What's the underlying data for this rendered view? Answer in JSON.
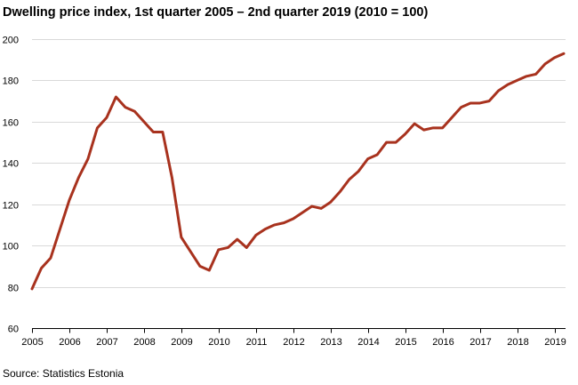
{
  "title": "Dwelling price index, 1st quarter 2005 – 2nd quarter 2019 (2010 = 100)",
  "source": "Source: Statistics Estonia",
  "chart_data": {
    "type": "line",
    "title": "Dwelling price index, 1st quarter 2005 – 2nd quarter 2019 (2010 = 100)",
    "xlabel": "",
    "ylabel": "",
    "ylim": [
      60,
      200
    ],
    "yticks": [
      60,
      80,
      100,
      120,
      140,
      160,
      180,
      200
    ],
    "xticks": [
      "2005",
      "2006",
      "2007",
      "2008",
      "2009",
      "2010",
      "2011",
      "2012",
      "2013",
      "2014",
      "2015",
      "2016",
      "2017",
      "2018",
      "2019"
    ],
    "grid": true,
    "legend": "none",
    "color": "#a8321e",
    "x": [
      "2005 Q1",
      "2005 Q2",
      "2005 Q3",
      "2005 Q4",
      "2006 Q1",
      "2006 Q2",
      "2006 Q3",
      "2006 Q4",
      "2007 Q1",
      "2007 Q2",
      "2007 Q3",
      "2007 Q4",
      "2008 Q1",
      "2008 Q2",
      "2008 Q3",
      "2008 Q4",
      "2009 Q1",
      "2009 Q2",
      "2009 Q3",
      "2009 Q4",
      "2010 Q1",
      "2010 Q2",
      "2010 Q3",
      "2010 Q4",
      "2011 Q1",
      "2011 Q2",
      "2011 Q3",
      "2011 Q4",
      "2012 Q1",
      "2012 Q2",
      "2012 Q3",
      "2012 Q4",
      "2013 Q1",
      "2013 Q2",
      "2013 Q3",
      "2013 Q4",
      "2014 Q1",
      "2014 Q2",
      "2014 Q3",
      "2014 Q4",
      "2015 Q1",
      "2015 Q2",
      "2015 Q3",
      "2015 Q4",
      "2016 Q1",
      "2016 Q2",
      "2016 Q3",
      "2016 Q4",
      "2017 Q1",
      "2017 Q2",
      "2017 Q3",
      "2017 Q4",
      "2018 Q1",
      "2018 Q2",
      "2018 Q3",
      "2018 Q4",
      "2019 Q1",
      "2019 Q2"
    ],
    "series": [
      {
        "values": [
          79,
          89,
          94,
          108,
          122,
          133,
          142,
          157,
          162,
          172,
          167,
          165,
          160,
          155,
          155,
          133,
          104,
          97,
          90,
          88,
          98,
          99,
          103,
          99,
          105,
          108,
          110,
          111,
          113,
          116,
          119,
          118,
          121,
          126,
          132,
          136,
          142,
          144,
          150,
          150,
          154,
          159,
          156,
          157,
          157,
          162,
          167,
          169,
          169,
          170,
          175,
          178,
          180,
          182,
          183,
          188,
          191,
          193
        ]
      }
    ]
  }
}
